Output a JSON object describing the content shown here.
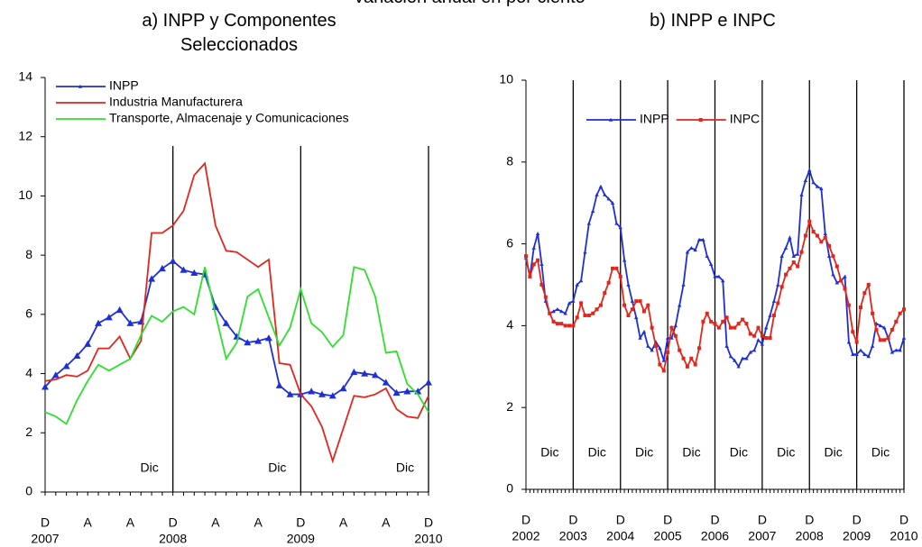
{
  "title": "Variación anual en por ciento",
  "chart_data": [
    {
      "type": "line",
      "title": "a) INPP y Componentes Seleccionados",
      "legend": "upper left",
      "categories": [
        "D",
        null,
        null,
        null,
        "A",
        null,
        null,
        null,
        "A",
        null,
        null,
        null,
        "D",
        null,
        null,
        null,
        "A",
        null,
        null,
        null,
        "A",
        null,
        null,
        null,
        "D",
        null,
        null,
        null,
        "A",
        null,
        null,
        null,
        "A",
        null,
        null,
        null,
        "D"
      ],
      "year_labels": [
        "2007",
        "2008",
        "2009",
        "2010"
      ],
      "vlines": [
        12,
        24,
        36
      ],
      "vline_labels": [
        "Dic",
        "Dic",
        "Dic"
      ],
      "ylim": [
        0,
        14
      ],
      "yticks": [
        0,
        2,
        4,
        6,
        8,
        10,
        12,
        14
      ],
      "series": [
        {
          "name": "INPP",
          "color": "#1f2fd6",
          "marker": "triangle",
          "values": [
            3.55,
            3.95,
            4.25,
            4.6,
            5.0,
            5.7,
            5.9,
            6.15,
            5.7,
            5.75,
            7.2,
            7.55,
            7.8,
            7.5,
            7.4,
            7.35,
            6.25,
            5.7,
            5.25,
            5.05,
            5.1,
            5.2,
            3.6,
            3.3,
            3.3,
            3.4,
            3.3,
            3.25,
            3.5,
            4.05,
            4.0,
            3.95,
            3.7,
            3.35,
            3.4,
            3.4,
            3.7
          ]
        },
        {
          "name": "Industria Manufacturera",
          "color": "#e3261c",
          "marker": "none",
          "values": [
            3.75,
            3.8,
            3.95,
            3.9,
            4.1,
            4.85,
            4.85,
            5.25,
            4.5,
            5.1,
            8.75,
            8.75,
            9.0,
            9.5,
            10.7,
            11.1,
            9.0,
            8.15,
            8.1,
            7.85,
            7.6,
            7.85,
            4.35,
            4.3,
            3.3,
            2.9,
            2.2,
            1.05,
            2.15,
            3.25,
            3.2,
            3.3,
            3.5,
            2.8,
            2.55,
            2.5,
            3.25
          ]
        },
        {
          "name": "Transporte, Almacenaje  y Comunicaciones",
          "color": "#2ee02e",
          "marker": "none",
          "values": [
            2.7,
            2.55,
            2.3,
            3.1,
            3.75,
            4.3,
            4.1,
            4.3,
            4.5,
            5.3,
            5.95,
            5.75,
            6.1,
            6.25,
            6.0,
            7.6,
            6.0,
            4.5,
            5.05,
            6.6,
            6.85,
            5.9,
            4.95,
            5.55,
            6.85,
            5.7,
            5.4,
            4.9,
            5.3,
            7.6,
            7.5,
            6.6,
            4.7,
            4.75,
            3.65,
            3.3,
            2.7
          ]
        }
      ]
    },
    {
      "type": "line",
      "title": "b) INPP e INPC",
      "legend": "upper center",
      "categories": [
        "D",
        null,
        null,
        null,
        null,
        null,
        null,
        null,
        null,
        null,
        null,
        null,
        "D",
        null,
        null,
        null,
        null,
        null,
        null,
        null,
        null,
        null,
        null,
        null,
        "D",
        null,
        null,
        null,
        null,
        null,
        null,
        null,
        null,
        null,
        null,
        null,
        "D",
        null,
        null,
        null,
        null,
        null,
        null,
        null,
        null,
        null,
        null,
        null,
        "D",
        null,
        null,
        null,
        null,
        null,
        null,
        null,
        null,
        null,
        null,
        null,
        "D",
        null,
        null,
        null,
        null,
        null,
        null,
        null,
        null,
        null,
        null,
        null,
        "D",
        null,
        null,
        null,
        null,
        null,
        null,
        null,
        null,
        null,
        null,
        null,
        "D",
        null,
        null,
        null,
        null,
        null,
        null,
        null,
        null,
        null,
        null,
        null,
        "D"
      ],
      "year_labels": [
        "2002",
        "2003",
        "2004",
        "2005",
        "2006",
        "2007",
        "2008",
        "2009",
        "2010"
      ],
      "vlines": [
        12,
        24,
        36,
        48,
        60,
        72,
        84,
        96
      ],
      "vline_labels": [
        "Dic",
        "Dic",
        "Dic",
        "Dic",
        "Dic",
        "Dic",
        "Dic",
        "Dic"
      ],
      "ylim": [
        0,
        10
      ],
      "yticks": [
        0,
        2,
        4,
        6,
        8,
        10
      ],
      "series": [
        {
          "name": "INPP",
          "color": "#1f2fd6",
          "marker": "triangle",
          "values": [
            5.65,
            5.2,
            5.9,
            6.25,
            5.5,
            4.6,
            4.3,
            4.35,
            4.4,
            4.35,
            4.3,
            4.55,
            4.6,
            5.0,
            5.1,
            5.8,
            6.5,
            6.8,
            7.2,
            7.4,
            7.2,
            7.1,
            7.0,
            6.5,
            6.4,
            5.6,
            5.0,
            4.6,
            4.2,
            3.7,
            3.85,
            3.5,
            3.4,
            3.6,
            3.45,
            3.15,
            3.7,
            3.7,
            4.0,
            4.5,
            5.0,
            5.8,
            5.9,
            5.85,
            6.1,
            6.1,
            5.7,
            5.5,
            5.2,
            5.2,
            5.1,
            3.5,
            3.25,
            3.15,
            3.0,
            3.2,
            3.2,
            3.35,
            3.4,
            3.65,
            3.55,
            3.95,
            4.25,
            4.6,
            5.0,
            5.7,
            5.9,
            6.15,
            5.7,
            5.75,
            7.2,
            7.55,
            7.8,
            7.5,
            7.4,
            7.35,
            6.25,
            5.7,
            5.25,
            5.05,
            5.1,
            5.2,
            3.6,
            3.3,
            3.3,
            3.4,
            3.3,
            3.25,
            3.5,
            4.05,
            4.0,
            3.95,
            3.7,
            3.35,
            3.4,
            3.4,
            3.7
          ]
        },
        {
          "name": "INPC",
          "color": "#e3261c",
          "marker": "square",
          "values": [
            5.7,
            5.2,
            5.5,
            5.6,
            5.0,
            4.7,
            4.3,
            4.1,
            4.05,
            4.05,
            4.0,
            4.0,
            4.0,
            4.2,
            4.55,
            4.25,
            4.25,
            4.3,
            4.4,
            4.5,
            4.8,
            5.05,
            5.4,
            5.4,
            5.2,
            4.5,
            4.25,
            4.4,
            4.6,
            4.6,
            4.35,
            4.5,
            3.95,
            3.5,
            3.05,
            2.9,
            3.35,
            3.95,
            3.75,
            3.4,
            3.2,
            3.0,
            3.2,
            3.05,
            3.45,
            4.1,
            4.3,
            4.1,
            4.05,
            3.95,
            4.1,
            4.2,
            3.95,
            3.95,
            4.05,
            4.15,
            4.05,
            3.8,
            3.75,
            3.95,
            3.75,
            3.7,
            3.7,
            4.25,
            4.55,
            4.95,
            5.25,
            5.4,
            5.55,
            5.45,
            5.8,
            6.2,
            6.55,
            6.3,
            6.2,
            6.05,
            6.15,
            5.95,
            5.7,
            5.45,
            5.1,
            4.9,
            4.5,
            3.85,
            3.6,
            4.45,
            4.8,
            5.0,
            4.3,
            3.9,
            3.65,
            3.65,
            3.7,
            3.9,
            4.1,
            4.3,
            4.4
          ]
        }
      ]
    }
  ]
}
